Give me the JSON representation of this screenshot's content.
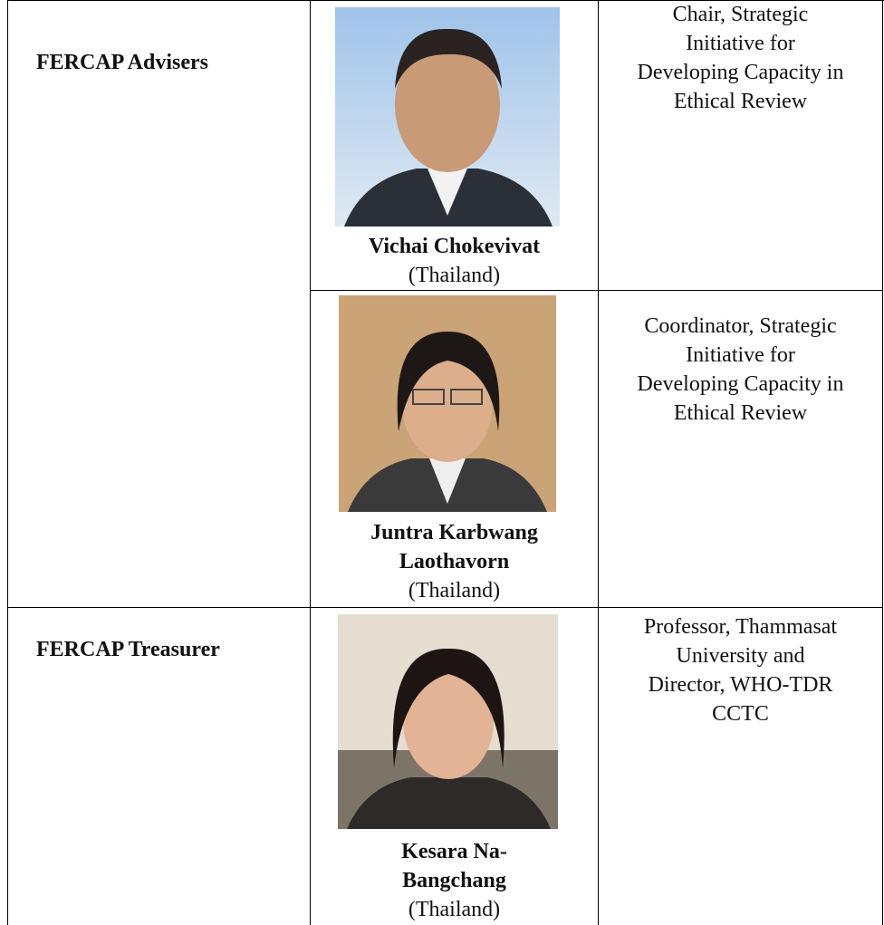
{
  "table": {
    "rows": [
      {
        "section": "FERCAP Advisers",
        "members": [
          {
            "name_lines": [
              "Vichai Chokevivat"
            ],
            "country": "(Thailand)",
            "role_lines": [
              "Chair, Strategic",
              "Initiative for",
              "Developing Capacity in",
              "Ethical Review"
            ]
          },
          {
            "name_lines": [
              "Juntra Karbwang",
              "Laothavorn"
            ],
            "country": "(Thailand)",
            "role_lines": [
              "Coordinator, Strategic",
              "Initiative for",
              "Developing Capacity in",
              "Ethical Review"
            ]
          }
        ]
      },
      {
        "section": "FERCAP Treasurer",
        "members": [
          {
            "name_lines": [
              "Kesara Na-",
              "Bangchang"
            ],
            "country": "(Thailand)",
            "role_lines": [
              "Professor, Thammasat",
              "University and",
              "Director, WHO-TDR",
              "CCTC"
            ]
          }
        ]
      }
    ]
  }
}
